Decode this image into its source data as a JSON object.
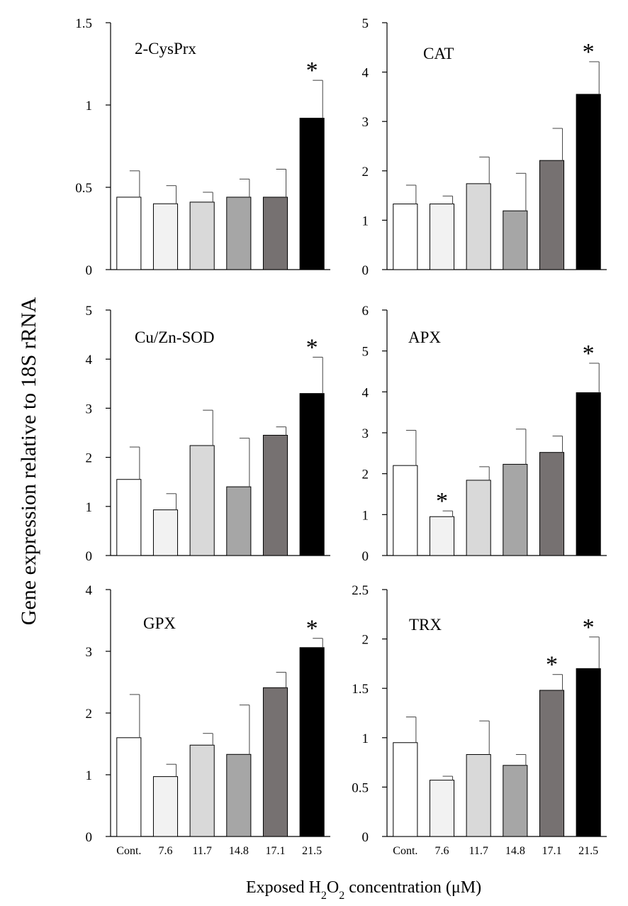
{
  "y_label": "Gene expression relative to 18S rRNA",
  "x_label_parts": [
    "Exposed H",
    "2",
    "O",
    "2",
    " concentration (μM)"
  ],
  "colors": [
    "#ffffff",
    "#f2f2f2",
    "#d9d9d9",
    "#a6a6a6",
    "#767171",
    "#000000"
  ],
  "chart_data": [
    {
      "type": "bar",
      "title": "2-CysPrx",
      "categories": [
        "Cont.",
        "7.6",
        "11.7",
        "14.8",
        "17.1",
        "21.5"
      ],
      "values": [
        0.44,
        0.4,
        0.41,
        0.44,
        0.44,
        0.92
      ],
      "errors": [
        0.16,
        0.11,
        0.06,
        0.11,
        0.17,
        0.23
      ],
      "significant": [
        false,
        false,
        false,
        false,
        false,
        true
      ],
      "ylim": [
        0,
        1.5
      ],
      "yticks": [
        0,
        0.5,
        1,
        1.5
      ],
      "ytick_labels": [
        "0",
        "0.5",
        "1",
        "1.5"
      ]
    },
    {
      "type": "bar",
      "title": "CAT",
      "categories": [
        "Cont.",
        "7.6",
        "11.7",
        "14.8",
        "17.1",
        "21.5"
      ],
      "values": [
        1.33,
        1.33,
        1.74,
        1.19,
        2.21,
        3.55
      ],
      "errors": [
        0.38,
        0.16,
        0.54,
        0.76,
        0.65,
        0.66
      ],
      "significant": [
        false,
        false,
        false,
        false,
        false,
        true
      ],
      "ylim": [
        0,
        5
      ],
      "yticks": [
        0,
        1,
        2,
        3,
        4,
        5
      ],
      "ytick_labels": [
        "0",
        "1",
        "2",
        "3",
        "4",
        "5"
      ]
    },
    {
      "type": "bar",
      "title": "Cu/Zn-SOD",
      "categories": [
        "Cont.",
        "7.6",
        "11.7",
        "14.8",
        "17.1",
        "21.5"
      ],
      "values": [
        1.55,
        0.93,
        2.24,
        1.4,
        2.45,
        3.3
      ],
      "errors": [
        0.66,
        0.33,
        0.72,
        0.99,
        0.17,
        0.74
      ],
      "significant": [
        false,
        false,
        false,
        false,
        false,
        true
      ],
      "ylim": [
        0,
        5
      ],
      "yticks": [
        0,
        1,
        2,
        3,
        4,
        5
      ],
      "ytick_labels": [
        "0",
        "1",
        "2",
        "3",
        "4",
        "5"
      ]
    },
    {
      "type": "bar",
      "title": "APX",
      "categories": [
        "Cont.",
        "7.6",
        "11.7",
        "14.8",
        "17.1",
        "21.5"
      ],
      "values": [
        2.2,
        0.95,
        1.84,
        2.23,
        2.52,
        3.98
      ],
      "errors": [
        0.86,
        0.14,
        0.33,
        0.86,
        0.4,
        0.72
      ],
      "significant": [
        false,
        true,
        false,
        false,
        false,
        true
      ],
      "ylim": [
        0,
        6
      ],
      "yticks": [
        0,
        1,
        2,
        3,
        4,
        5,
        6
      ],
      "ytick_labels": [
        "0",
        "1",
        "2",
        "3",
        "4",
        "5",
        "6"
      ]
    },
    {
      "type": "bar",
      "title": "GPX",
      "categories": [
        "Cont.",
        "7.6",
        "11.7",
        "14.8",
        "17.1",
        "21.5"
      ],
      "values": [
        1.6,
        0.97,
        1.48,
        1.33,
        2.41,
        3.06
      ],
      "errors": [
        0.7,
        0.2,
        0.19,
        0.8,
        0.25,
        0.15
      ],
      "significant": [
        false,
        false,
        false,
        false,
        false,
        true
      ],
      "ylim": [
        0,
        4
      ],
      "yticks": [
        0,
        1,
        2,
        3,
        4
      ],
      "ytick_labels": [
        "0",
        "1",
        "2",
        "3",
        "4"
      ]
    },
    {
      "type": "bar",
      "title": "TRX",
      "categories": [
        "Cont.",
        "7.6",
        "11.7",
        "14.8",
        "17.1",
        "21.5"
      ],
      "values": [
        0.95,
        0.57,
        0.83,
        0.72,
        1.48,
        1.7
      ],
      "errors": [
        0.26,
        0.04,
        0.34,
        0.11,
        0.16,
        0.32
      ],
      "significant": [
        false,
        false,
        false,
        false,
        true,
        true
      ],
      "ylim": [
        0,
        2.5
      ],
      "yticks": [
        0,
        0.5,
        1,
        1.5,
        2,
        2.5
      ],
      "ytick_labels": [
        "0",
        "0.5",
        "1",
        "1.5",
        "2",
        "2.5"
      ]
    }
  ]
}
